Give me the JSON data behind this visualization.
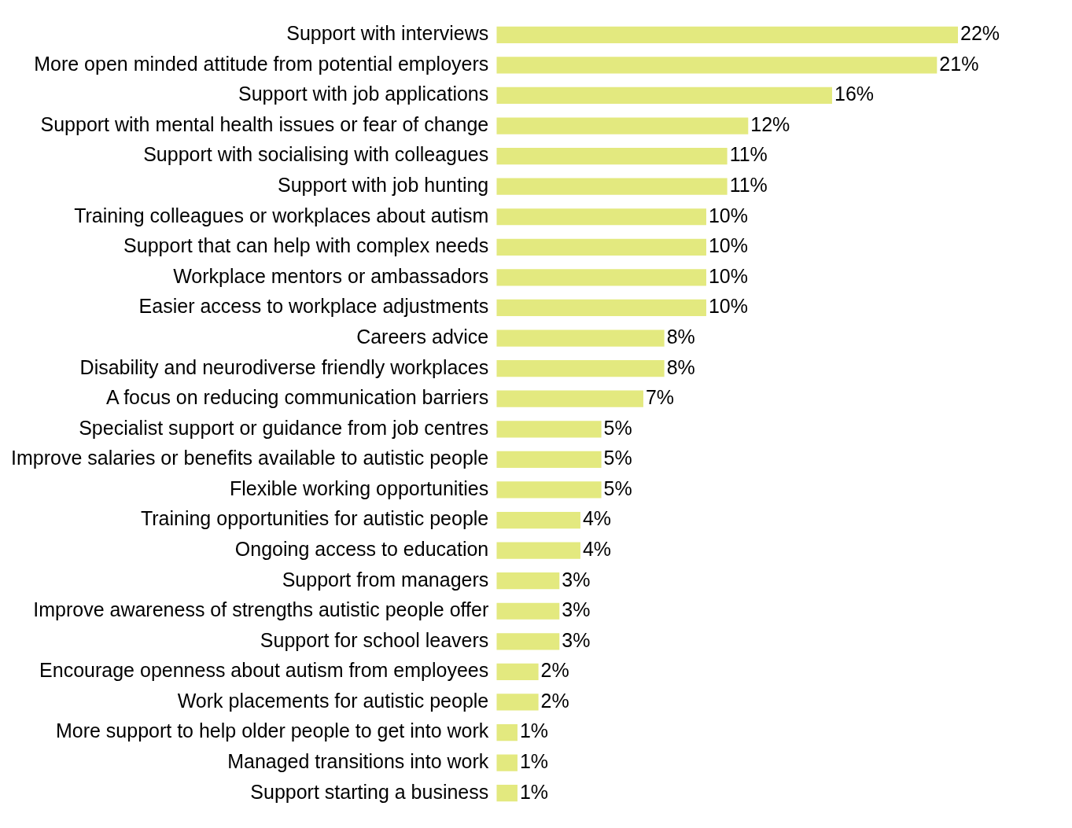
{
  "chart_data": {
    "type": "bar",
    "orientation": "horizontal",
    "color": "#e3e97f",
    "categories": [
      "Support with interviews",
      "More open minded attitude from potential employers",
      "Support with job applications",
      "Support with mental health issues or fear of change",
      "Support with socialising with colleagues",
      "Support with job hunting",
      "Training colleagues or workplaces about autism",
      "Support that can help with complex needs",
      "Workplace mentors or ambassadors",
      "Easier access to workplace adjustments",
      "Careers advice",
      "Disability and neurodiverse friendly workplaces",
      "A focus on reducing communication barriers",
      "Specialist support or guidance from job centres",
      "Improve salaries or benefits available to autistic people",
      "Flexible working opportunities",
      "Training opportunities for autistic people",
      "Ongoing access to education",
      "Support from managers",
      "Improve awareness of strengths autistic people offer",
      "Support for school leavers",
      "Encourage openness about autism from employees",
      "Work placements for autistic people",
      "More support to help older people to get into work",
      "Managed transitions into work",
      "Support starting a business"
    ],
    "values": [
      22,
      21,
      16,
      12,
      11,
      11,
      10,
      10,
      10,
      10,
      8,
      8,
      7,
      5,
      5,
      5,
      4,
      4,
      3,
      3,
      3,
      2,
      2,
      1,
      1,
      1
    ],
    "value_labels": [
      "22%",
      "21%",
      "16%",
      "12%",
      "11%",
      "11%",
      "10%",
      "10%",
      "10%",
      "10%",
      "8%",
      "8%",
      "7%",
      "5%",
      "5%",
      "5%",
      "4%",
      "4%",
      "3%",
      "3%",
      "3%",
      "2%",
      "2%",
      "1%",
      "1%",
      "1%"
    ]
  }
}
